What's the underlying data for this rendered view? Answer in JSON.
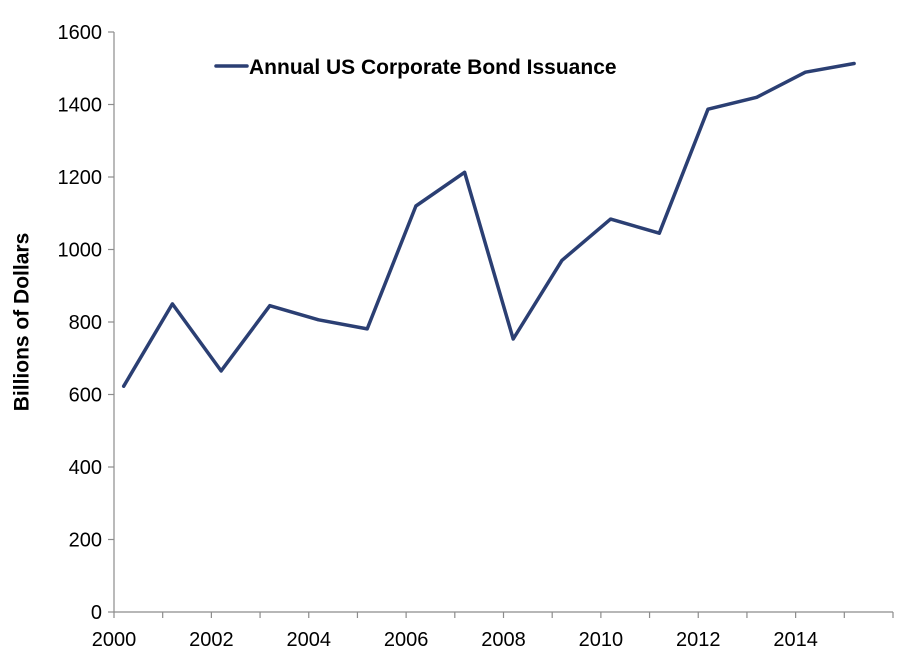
{
  "chart_data": {
    "type": "line",
    "title": "",
    "xlabel": "",
    "ylabel": "Billions of Dollars",
    "xlim": [
      2000,
      2016
    ],
    "ylim": [
      0,
      1600
    ],
    "x_ticks": [
      "2000",
      "2002",
      "2004",
      "2006",
      "2008",
      "2010",
      "2012",
      "2014"
    ],
    "y_ticks": [
      "0",
      "200",
      "400",
      "600",
      "800",
      "1000",
      "1200",
      "1400",
      "1600"
    ],
    "grid": false,
    "legend_position": "top",
    "series": [
      {
        "name": "Annual US Corporate Bond Issuance",
        "color": "#2b3f73",
        "x": [
          2000.2,
          2001.2,
          2002.2,
          2003.2,
          2004.2,
          2005.2,
          2006.2,
          2007.2,
          2008.2,
          2009.2,
          2010.2,
          2011.2,
          2012.2,
          2013.2,
          2014.2,
          2015.2
        ],
        "values": [
          623,
          850,
          665,
          845,
          806,
          781,
          1120,
          1213,
          753,
          970,
          1084,
          1045,
          1387,
          1420,
          1489,
          1513
        ]
      }
    ]
  }
}
